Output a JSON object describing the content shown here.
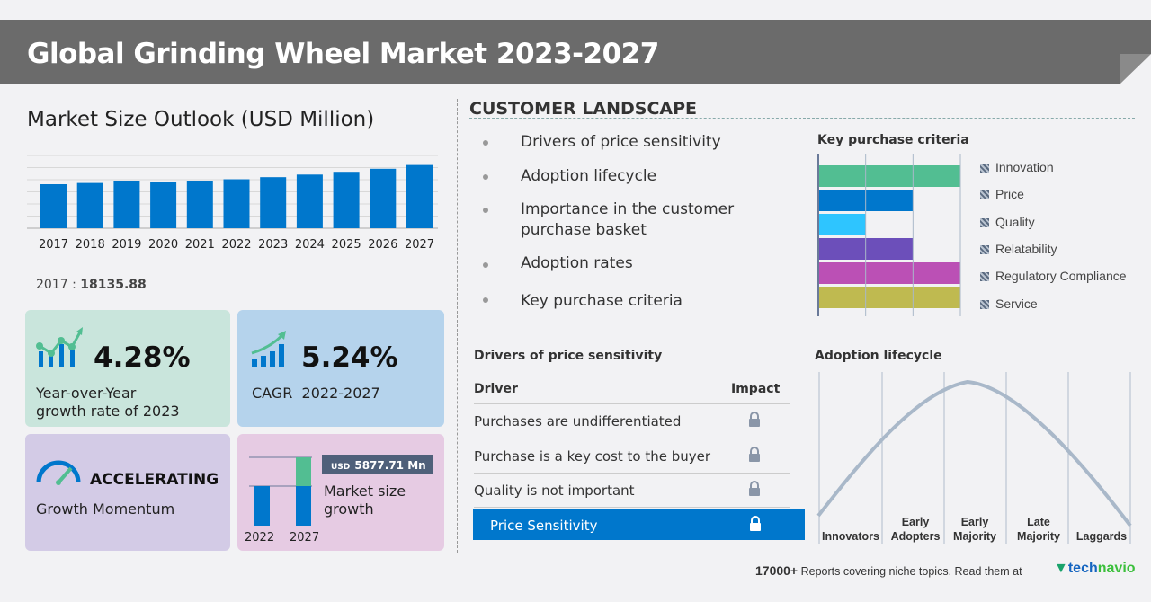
{
  "header": {
    "title": "Global Grinding Wheel Market 2023-2027"
  },
  "market_outlook": {
    "title": "Market Size Outlook (USD Million)",
    "chart_data": {
      "type": "bar",
      "categories": [
        "2017",
        "2018",
        "2019",
        "2020",
        "2021",
        "2022",
        "2023",
        "2024",
        "2025",
        "2026",
        "2027"
      ],
      "values": [
        18135.88,
        18650,
        19250,
        18880,
        19430,
        20170,
        21030,
        22100,
        23240,
        24500,
        26050
      ],
      "grid": true,
      "bar_color": "#0077cc"
    },
    "first_year_label": "2017 :",
    "first_year_value": "18135.88"
  },
  "kpis": {
    "yoy": {
      "value": "4.28%",
      "label_line1": "Year-over-Year",
      "label_line2": "growth rate of 2023",
      "bg": "#c9e5dc"
    },
    "cagr": {
      "value": "5.24%",
      "label": "CAGR  2022-2027",
      "bg": "#b5d3ec"
    },
    "momentum": {
      "value": "ACCELERATING",
      "label": "Growth Momentum",
      "bg": "#d3cbe6"
    },
    "growth": {
      "currency": "USD",
      "value": "5877.71 Mn",
      "label_line1": "Market size",
      "label_line2": "growth",
      "year_start": "2022",
      "year_end": "2027",
      "bg": "#e6cbe3"
    }
  },
  "customer_landscape": {
    "title": "CUSTOMER LANDSCAPE",
    "items": [
      "Drivers of price sensitivity",
      "Adoption lifecycle",
      "Importance in the customer",
      "purchase basket",
      "Adoption rates",
      "Key purchase criteria"
    ]
  },
  "key_purchase_criteria": {
    "title": "Key purchase criteria",
    "chart_data": {
      "type": "bar",
      "orientation": "horizontal",
      "xlim": [
        0,
        3
      ],
      "grid": true,
      "categories": [
        "Innovation",
        "Price",
        "Quality",
        "Relatability",
        "Regulatory Compliance",
        "Service"
      ],
      "values": [
        3,
        2,
        1,
        2,
        3,
        3
      ],
      "colors": [
        "#52be92",
        "#0077cc",
        "#2ec5ff",
        "#6c4fba",
        "#bb50b5",
        "#bfba50"
      ]
    }
  },
  "drivers": {
    "title": "Drivers of price sensitivity",
    "col_driver": "Driver",
    "col_impact": "Impact",
    "rows": [
      "Purchases are undifferentiated",
      "Purchase is a key cost to the buyer",
      "Quality is not important"
    ],
    "highlight": "Price Sensitivity",
    "highlight_color": "#0077cc"
  },
  "adoption": {
    "title": "Adoption lifecycle",
    "stages": [
      [
        "",
        "Innovators"
      ],
      [
        "Early",
        "Adopters"
      ],
      [
        "Early",
        "Majority"
      ],
      [
        "Late",
        "Majority"
      ],
      [
        "",
        "Laggards"
      ]
    ]
  },
  "footer": {
    "count": "17000+",
    "text": "Reports covering niche topics. Read them at",
    "brand_a": "tech",
    "brand_b": "navio"
  }
}
